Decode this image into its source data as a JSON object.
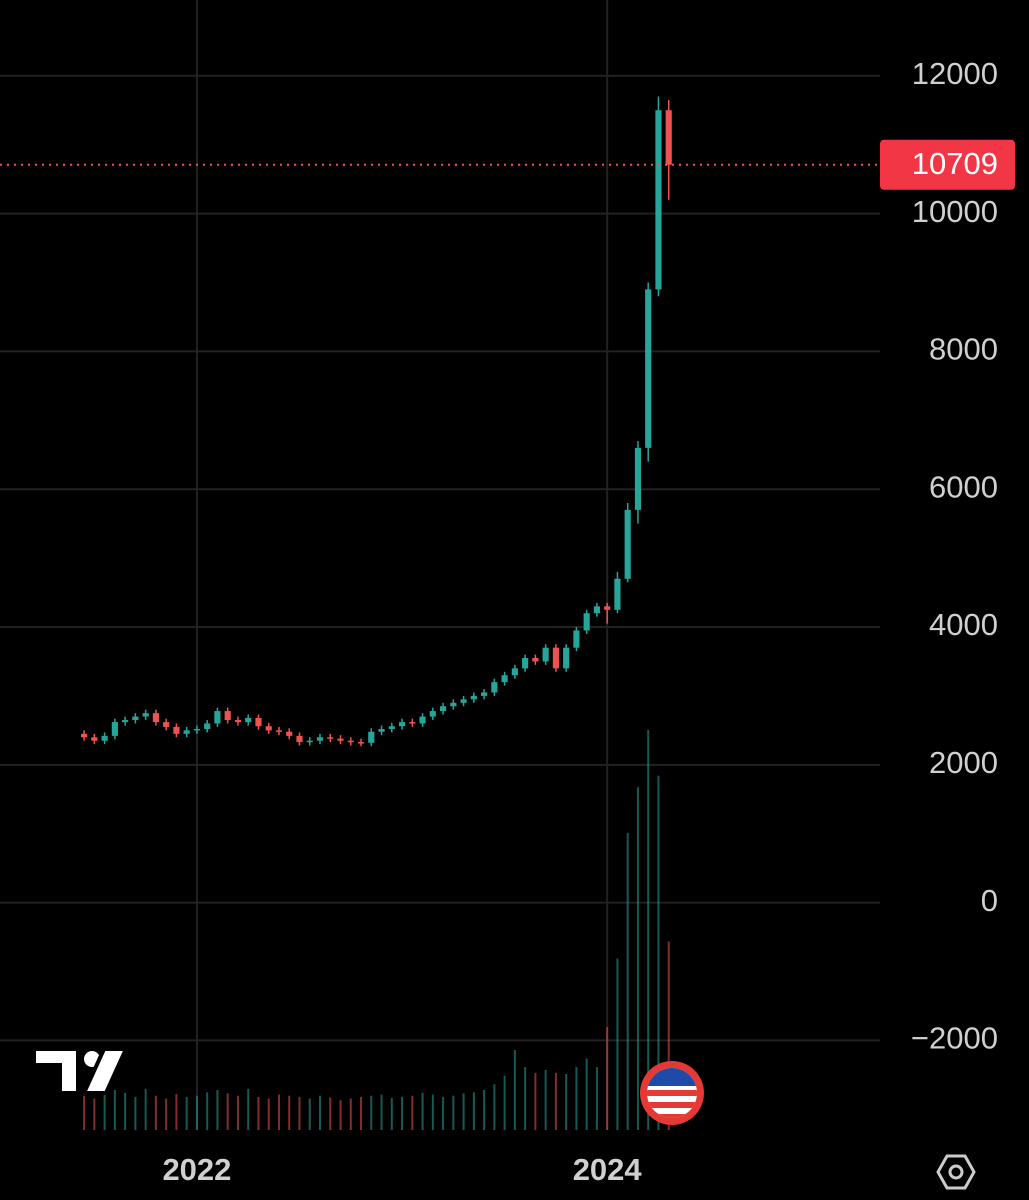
{
  "chart_data": {
    "type": "candlestick",
    "x": [
      2021.45,
      2021.5,
      2021.55,
      2021.6,
      2021.65,
      2021.7,
      2021.75,
      2021.8,
      2021.85,
      2021.9,
      2021.95,
      2022,
      2022.05,
      2022.1,
      2022.15,
      2022.2,
      2022.25,
      2022.3,
      2022.35,
      2022.4,
      2022.45,
      2022.5,
      2022.55,
      2022.6,
      2022.65,
      2022.7,
      2022.75,
      2022.8,
      2022.85,
      2022.9,
      2022.95,
      2023,
      2023.05,
      2023.1,
      2023.15,
      2023.2,
      2023.25,
      2023.3,
      2023.35,
      2023.4,
      2023.45,
      2023.5,
      2023.55,
      2023.6,
      2023.65,
      2023.7,
      2023.75,
      2023.8,
      2023.85,
      2023.9,
      2023.95,
      2024,
      2024.05,
      2024.1,
      2024.15,
      2024.2,
      2024.25,
      2024.3
    ],
    "open": [
      2450,
      2400,
      2350,
      2420,
      2620,
      2650,
      2700,
      2750,
      2620,
      2550,
      2450,
      2500,
      2520,
      2600,
      2780,
      2650,
      2620,
      2680,
      2560,
      2500,
      2480,
      2420,
      2330,
      2350,
      2400,
      2380,
      2350,
      2330,
      2320,
      2480,
      2520,
      2560,
      2620,
      2600,
      2700,
      2780,
      2850,
      2900,
      2950,
      3000,
      3050,
      3200,
      3300,
      3400,
      3550,
      3500,
      3700,
      3400,
      3700,
      3950,
      4200,
      4300,
      4250,
      4700,
      5700,
      6600,
      8900,
      11500
    ],
    "high": [
      2500,
      2450,
      2470,
      2670,
      2700,
      2750,
      2800,
      2800,
      2670,
      2600,
      2550,
      2570,
      2650,
      2830,
      2830,
      2700,
      2730,
      2730,
      2610,
      2550,
      2530,
      2470,
      2400,
      2450,
      2450,
      2430,
      2400,
      2380,
      2530,
      2570,
      2610,
      2670,
      2670,
      2750,
      2830,
      2900,
      2950,
      3000,
      3050,
      3100,
      3250,
      3350,
      3450,
      3600,
      3600,
      3750,
      3750,
      3750,
      4000,
      4250,
      4350,
      4350,
      4800,
      5800,
      6700,
      9000,
      11700,
      11650
    ],
    "low": [
      2350,
      2300,
      2300,
      2370,
      2570,
      2600,
      2650,
      2570,
      2500,
      2400,
      2400,
      2450,
      2470,
      2550,
      2600,
      2570,
      2570,
      2510,
      2450,
      2430,
      2370,
      2280,
      2280,
      2300,
      2330,
      2300,
      2280,
      2270,
      2270,
      2430,
      2470,
      2510,
      2550,
      2550,
      2650,
      2730,
      2800,
      2850,
      2900,
      2950,
      3000,
      3150,
      3250,
      3350,
      3450,
      3450,
      3350,
      3350,
      3650,
      3900,
      4150,
      4050,
      4200,
      4650,
      5500,
      6400,
      8800,
      10200
    ],
    "close": [
      2400,
      2350,
      2420,
      2620,
      2650,
      2700,
      2750,
      2620,
      2550,
      2450,
      2500,
      2520,
      2600,
      2780,
      2650,
      2620,
      2680,
      2560,
      2500,
      2480,
      2420,
      2330,
      2350,
      2400,
      2380,
      2350,
      2330,
      2320,
      2480,
      2520,
      2560,
      2620,
      2600,
      2700,
      2780,
      2850,
      2900,
      2950,
      3000,
      3050,
      3200,
      3300,
      3400,
      3550,
      3500,
      3700,
      3400,
      3700,
      3950,
      4200,
      4300,
      4250,
      4700,
      5700,
      6600,
      8900,
      11500,
      10709
    ],
    "volume": [
      60,
      55,
      62,
      70,
      65,
      58,
      72,
      60,
      55,
      63,
      58,
      60,
      66,
      70,
      64,
      60,
      72,
      58,
      55,
      62,
      60,
      58,
      55,
      60,
      57,
      52,
      55,
      58,
      60,
      62,
      56,
      58,
      60,
      65,
      62,
      58,
      60,
      64,
      66,
      70,
      80,
      95,
      140,
      110,
      100,
      105,
      100,
      98,
      110,
      125,
      110,
      180,
      300,
      520,
      600,
      700,
      620,
      330
    ],
    "up_color": "#26a69a",
    "down_color": "#ef5350",
    "last_price": 10709,
    "xlim": [
      2021.04,
      2025.33
    ],
    "xticks": [
      2022,
      2024
    ],
    "ylim": [
      -3300,
      13100
    ],
    "yticks": [
      {
        "value": -2000,
        "label": "−2000"
      },
      0,
      2000,
      4000,
      6000,
      8000,
      10000,
      12000
    ],
    "grid": true
  }
}
